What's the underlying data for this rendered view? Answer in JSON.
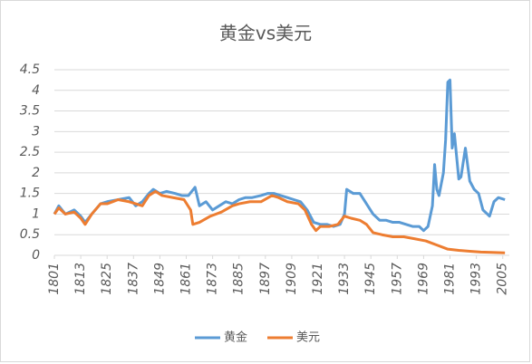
{
  "chart_data": {
    "type": "line",
    "title": "黄金vs美元",
    "xlim": [
      1801,
      2008
    ],
    "ylim": [
      0,
      4.5
    ],
    "xticks": [
      1801,
      1813,
      1825,
      1837,
      1849,
      1861,
      1873,
      1885,
      1897,
      1909,
      1921,
      1933,
      1945,
      1957,
      1969,
      1981,
      1993,
      2005
    ],
    "yticks": [
      0,
      0.5,
      1,
      1.5,
      2,
      2.5,
      3,
      3.5,
      4,
      4.5
    ],
    "grid": true,
    "legend": "bottom",
    "series": [
      {
        "name": "黄金",
        "color": "#5b9bd5",
        "x": [
          1801,
          1803,
          1806,
          1810,
          1813,
          1815,
          1818,
          1822,
          1825,
          1830,
          1835,
          1838,
          1841,
          1844,
          1846,
          1849,
          1852,
          1856,
          1859,
          1862,
          1865,
          1867,
          1870,
          1873,
          1876,
          1879,
          1882,
          1885,
          1888,
          1891,
          1895,
          1898,
          1901,
          1904,
          1907,
          1910,
          1913,
          1916,
          1919,
          1922,
          1925,
          1928,
          1931,
          1933,
          1934,
          1937,
          1940,
          1943,
          1946,
          1949,
          1952,
          1955,
          1958,
          1961,
          1964,
          1967,
          1969,
          1971,
          1973,
          1974,
          1975,
          1976,
          1978,
          1979,
          1980,
          1981,
          1982,
          1983,
          1985,
          1986,
          1988,
          1990,
          1992,
          1994,
          1996,
          1998,
          1999,
          2001,
          2003,
          2006
        ],
        "values": [
          1.0,
          1.2,
          1.0,
          1.1,
          0.95,
          0.8,
          1.0,
          1.25,
          1.3,
          1.35,
          1.4,
          1.2,
          1.3,
          1.5,
          1.6,
          1.5,
          1.55,
          1.5,
          1.45,
          1.45,
          1.65,
          1.2,
          1.3,
          1.1,
          1.2,
          1.3,
          1.25,
          1.35,
          1.4,
          1.4,
          1.45,
          1.5,
          1.5,
          1.45,
          1.4,
          1.35,
          1.3,
          1.1,
          0.8,
          0.75,
          0.75,
          0.7,
          0.75,
          1.0,
          1.6,
          1.5,
          1.5,
          1.25,
          1.0,
          0.85,
          0.85,
          0.8,
          0.8,
          0.75,
          0.7,
          0.7,
          0.6,
          0.7,
          1.2,
          2.2,
          1.6,
          1.45,
          2.0,
          2.8,
          4.2,
          4.25,
          2.6,
          2.95,
          1.85,
          1.9,
          2.6,
          1.8,
          1.6,
          1.5,
          1.1,
          1.0,
          0.95,
          1.3,
          1.4,
          1.35
        ]
      },
      {
        "name": "美元",
        "color": "#ed7d31",
        "x": [
          1801,
          1803,
          1806,
          1810,
          1813,
          1815,
          1818,
          1822,
          1825,
          1830,
          1835,
          1838,
          1841,
          1844,
          1847,
          1850,
          1855,
          1860,
          1863,
          1864,
          1867,
          1872,
          1877,
          1882,
          1885,
          1890,
          1895,
          1900,
          1903,
          1907,
          1912,
          1915,
          1918,
          1920,
          1922,
          1926,
          1930,
          1933,
          1936,
          1940,
          1943,
          1946,
          1950,
          1955,
          1960,
          1965,
          1970,
          1975,
          1980,
          1985,
          1990,
          1995,
          2000,
          2006
        ],
        "values": [
          1.0,
          1.15,
          1.0,
          1.05,
          0.9,
          0.75,
          1.0,
          1.25,
          1.25,
          1.35,
          1.3,
          1.25,
          1.2,
          1.45,
          1.55,
          1.45,
          1.4,
          1.35,
          1.1,
          0.75,
          0.8,
          0.95,
          1.05,
          1.2,
          1.25,
          1.3,
          1.3,
          1.45,
          1.4,
          1.3,
          1.25,
          1.1,
          0.75,
          0.6,
          0.7,
          0.7,
          0.75,
          0.95,
          0.9,
          0.85,
          0.75,
          0.55,
          0.5,
          0.45,
          0.45,
          0.4,
          0.35,
          0.25,
          0.15,
          0.12,
          0.1,
          0.08,
          0.07,
          0.06
        ]
      }
    ]
  }
}
